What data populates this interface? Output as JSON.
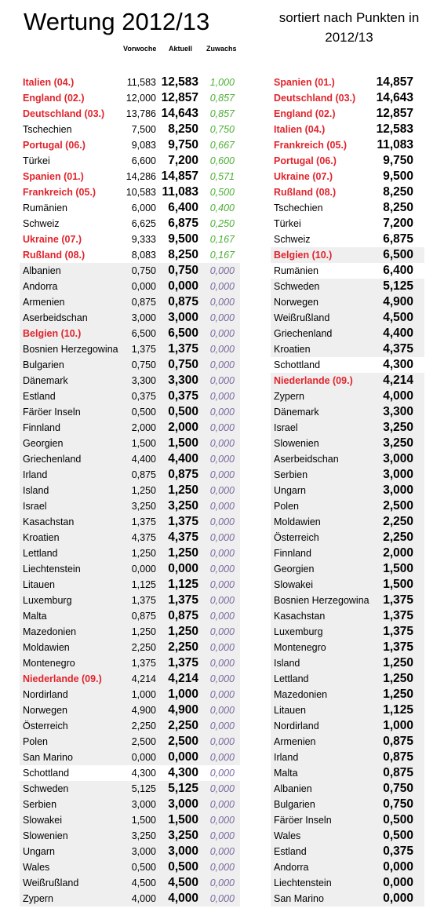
{
  "header": {
    "title": "Wertung 2012/13",
    "columns": [
      "Vorwoche",
      "Aktuell",
      "Zuwachs"
    ],
    "subtitle": "sortiert nach Punkten in 2012/13"
  },
  "left": {
    "rows": [
      [
        "Italien (04.)",
        "11,583",
        "12,583",
        "1,000"
      ],
      [
        "England (02.)",
        "12,000",
        "12,857",
        "0,857"
      ],
      [
        "Deutschland (03.)",
        "13,786",
        "14,643",
        "0,857"
      ],
      [
        "Tschechien",
        "7,500",
        "8,250",
        "0,750"
      ],
      [
        "Portugal (06.)",
        "9,083",
        "9,750",
        "0,667"
      ],
      [
        "Türkei",
        "6,600",
        "7,200",
        "0,600"
      ],
      [
        "Spanien (01.)",
        "14,286",
        "14,857",
        "0,571"
      ],
      [
        "Frankreich (05.)",
        "10,583",
        "11,083",
        "0,500"
      ],
      [
        "Rumänien",
        "6,000",
        "6,400",
        "0,400"
      ],
      [
        "Schweiz",
        "6,625",
        "6,875",
        "0,250"
      ],
      [
        "Ukraine (07.)",
        "9,333",
        "9,500",
        "0,167"
      ],
      [
        "Rußland (08.)",
        "8,083",
        "8,250",
        "0,167"
      ],
      [
        "Albanien",
        "0,750",
        "0,750",
        "0,000"
      ],
      [
        "Andorra",
        "0,000",
        "0,000",
        "0,000"
      ],
      [
        "Armenien",
        "0,875",
        "0,875",
        "0,000"
      ],
      [
        "Aserbeidschan",
        "3,000",
        "3,000",
        "0,000"
      ],
      [
        "Belgien (10.)",
        "6,500",
        "6,500",
        "0,000"
      ],
      [
        "Bosnien Herzegowina",
        "1,375",
        "1,375",
        "0,000"
      ],
      [
        "Bulgarien",
        "0,750",
        "0,750",
        "0,000"
      ],
      [
        "Dänemark",
        "3,300",
        "3,300",
        "0,000"
      ],
      [
        "Estland",
        "0,375",
        "0,375",
        "0,000"
      ],
      [
        "Färöer Inseln",
        "0,500",
        "0,500",
        "0,000"
      ],
      [
        "Finnland",
        "2,000",
        "2,000",
        "0,000"
      ],
      [
        "Georgien",
        "1,500",
        "1,500",
        "0,000"
      ],
      [
        "Griechenland",
        "4,400",
        "4,400",
        "0,000"
      ],
      [
        "Irland",
        "0,875",
        "0,875",
        "0,000"
      ],
      [
        "Island",
        "1,250",
        "1,250",
        "0,000"
      ],
      [
        "Israel",
        "3,250",
        "3,250",
        "0,000"
      ],
      [
        "Kasachstan",
        "1,375",
        "1,375",
        "0,000"
      ],
      [
        "Kroatien",
        "4,375",
        "4,375",
        "0,000"
      ],
      [
        "Lettland",
        "1,250",
        "1,250",
        "0,000"
      ],
      [
        "Liechtenstein",
        "0,000",
        "0,000",
        "0,000"
      ],
      [
        "Litauen",
        "1,125",
        "1,125",
        "0,000"
      ],
      [
        "Luxemburg",
        "1,375",
        "1,375",
        "0,000"
      ],
      [
        "Malta",
        "0,875",
        "0,875",
        "0,000"
      ],
      [
        "Mazedonien",
        "1,250",
        "1,250",
        "0,000"
      ],
      [
        "Moldawien",
        "2,250",
        "2,250",
        "0,000"
      ],
      [
        "Montenegro",
        "1,375",
        "1,375",
        "0,000"
      ],
      [
        "Niederlande (09.)",
        "4,214",
        "4,214",
        "0,000"
      ],
      [
        "Nordirland",
        "1,000",
        "1,000",
        "0,000"
      ],
      [
        "Norwegen",
        "4,900",
        "4,900",
        "0,000"
      ],
      [
        "Österreich",
        "2,250",
        "2,250",
        "0,000"
      ],
      [
        "Polen",
        "2,500",
        "2,500",
        "0,000"
      ],
      [
        "San Marino",
        "0,000",
        "0,000",
        "0,000"
      ],
      [
        "Schottland",
        "4,300",
        "4,300",
        "0,000"
      ],
      [
        "Schweden",
        "5,125",
        "5,125",
        "0,000"
      ],
      [
        "Serbien",
        "3,000",
        "3,000",
        "0,000"
      ],
      [
        "Slowakei",
        "1,500",
        "1,500",
        "0,000"
      ],
      [
        "Slowenien",
        "3,250",
        "3,250",
        "0,000"
      ],
      [
        "Ungarn",
        "3,000",
        "3,000",
        "0,000"
      ],
      [
        "Wales",
        "0,500",
        "0,500",
        "0,000"
      ],
      [
        "Weißrußland",
        "4,500",
        "4,500",
        "0,000"
      ],
      [
        "Zypern",
        "4,000",
        "4,000",
        "0,000"
      ]
    ]
  },
  "right": {
    "rows": [
      [
        "Spanien (01.)",
        "14,857"
      ],
      [
        "Deutschland (03.)",
        "14,643"
      ],
      [
        "England (02.)",
        "12,857"
      ],
      [
        "Italien (04.)",
        "12,583"
      ],
      [
        "Frankreich (05.)",
        "11,083"
      ],
      [
        "Portugal (06.)",
        "9,750"
      ],
      [
        "Ukraine (07.)",
        "9,500"
      ],
      [
        "Rußland (08.)",
        "8,250"
      ],
      [
        "Tschechien",
        "8,250"
      ],
      [
        "Türkei",
        "7,200"
      ],
      [
        "Schweiz",
        "6,875"
      ],
      [
        "Belgien (10.)",
        "6,500"
      ],
      [
        "Rumänien",
        "6,400"
      ],
      [
        "Schweden",
        "5,125"
      ],
      [
        "Norwegen",
        "4,900"
      ],
      [
        "Weißrußland",
        "4,500"
      ],
      [
        "Griechenland",
        "4,400"
      ],
      [
        "Kroatien",
        "4,375"
      ],
      [
        "Schottland",
        "4,300"
      ],
      [
        "Niederlande (09.)",
        "4,214"
      ],
      [
        "Zypern",
        "4,000"
      ],
      [
        "Dänemark",
        "3,300"
      ],
      [
        "Israel",
        "3,250"
      ],
      [
        "Slowenien",
        "3,250"
      ],
      [
        "Aserbeidschan",
        "3,000"
      ],
      [
        "Serbien",
        "3,000"
      ],
      [
        "Ungarn",
        "3,000"
      ],
      [
        "Polen",
        "2,500"
      ],
      [
        "Moldawien",
        "2,250"
      ],
      [
        "Österreich",
        "2,250"
      ],
      [
        "Finnland",
        "2,000"
      ],
      [
        "Georgien",
        "1,500"
      ],
      [
        "Slowakei",
        "1,500"
      ],
      [
        "Bosnien Herzegowina",
        "1,375"
      ],
      [
        "Kasachstan",
        "1,375"
      ],
      [
        "Luxemburg",
        "1,375"
      ],
      [
        "Montenegro",
        "1,375"
      ],
      [
        "Island",
        "1,250"
      ],
      [
        "Lettland",
        "1,250"
      ],
      [
        "Mazedonien",
        "1,250"
      ],
      [
        "Litauen",
        "1,125"
      ],
      [
        "Nordirland",
        "1,000"
      ],
      [
        "Armenien",
        "0,875"
      ],
      [
        "Irland",
        "0,875"
      ],
      [
        "Malta",
        "0,875"
      ],
      [
        "Albanien",
        "0,750"
      ],
      [
        "Bulgarien",
        "0,750"
      ],
      [
        "Färöer Inseln",
        "0,500"
      ],
      [
        "Wales",
        "0,500"
      ],
      [
        "Estland",
        "0,375"
      ],
      [
        "Andorra",
        "0,000"
      ],
      [
        "Liechtenstein",
        "0,000"
      ],
      [
        "San Marino",
        "0,000"
      ]
    ]
  }
}
